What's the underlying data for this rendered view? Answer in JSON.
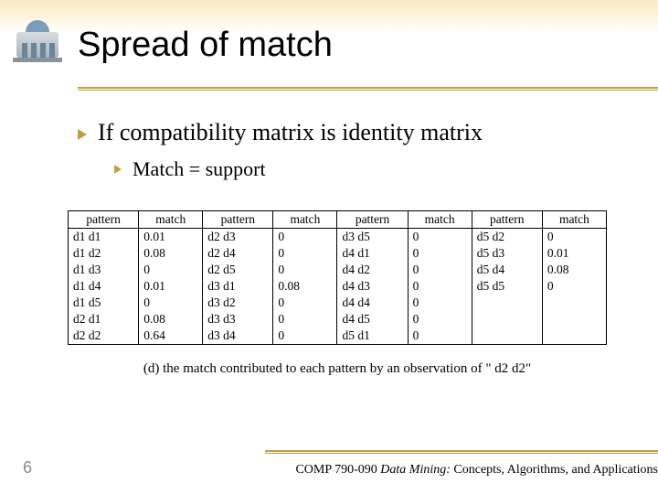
{
  "slide": {
    "title": "Spread of match",
    "page_number": "6"
  },
  "bullets": {
    "level1": "If compatibility matrix is identity matrix",
    "level2": "Match = support"
  },
  "table": {
    "columns": [
      "pattern",
      "match",
      "pattern",
      "match",
      "pattern",
      "match",
      "pattern",
      "match"
    ],
    "rows": [
      [
        "d1 d1",
        "0.01",
        "d2 d3",
        "0",
        "d3 d5",
        "0",
        "d5 d2",
        "0"
      ],
      [
        "d1 d2",
        "0.08",
        "d2 d4",
        "0",
        "d4 d1",
        "0",
        "d5 d3",
        "0.01"
      ],
      [
        "d1 d3",
        "0",
        "d2 d5",
        "0",
        "d4 d2",
        "0",
        "d5 d4",
        "0.08"
      ],
      [
        "d1 d4",
        "0.01",
        "d3 d1",
        "0.08",
        "d4 d3",
        "0",
        "d5 d5",
        "0"
      ],
      [
        "d1 d5",
        "0",
        "d3 d2",
        "0",
        "d4 d4",
        "0",
        "",
        ""
      ],
      [
        "d2 d1",
        "0.08",
        "d3 d3",
        "0",
        "d4 d5",
        "0",
        "",
        ""
      ],
      [
        "d2 d2",
        "0.64",
        "d3 d4",
        "0",
        "d5 d1",
        "0",
        "",
        ""
      ]
    ],
    "caption": "(d) the match contributed to each pattern  by an observation of \" d2 d2\""
  },
  "footer": {
    "course": "COMP 790-090 ",
    "book_title": "Data Mining:",
    "book_subtitle": " Concepts, Algorithms, and Applications"
  },
  "colors": {
    "accent": "#c89b3c",
    "gradient_top": "#fcebc4"
  }
}
